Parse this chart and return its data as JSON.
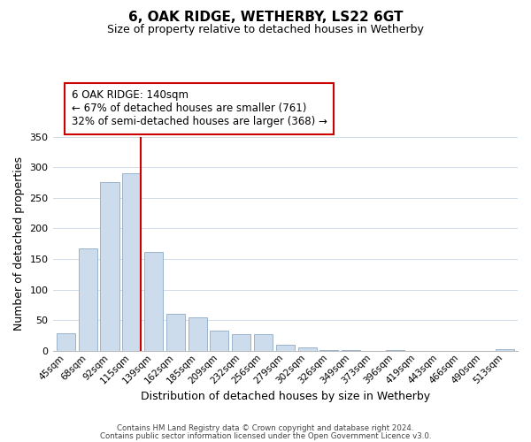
{
  "title": "6, OAK RIDGE, WETHERBY, LS22 6GT",
  "subtitle": "Size of property relative to detached houses in Wetherby",
  "xlabel": "Distribution of detached houses by size in Wetherby",
  "ylabel": "Number of detached properties",
  "bar_labels": [
    "45sqm",
    "68sqm",
    "92sqm",
    "115sqm",
    "139sqm",
    "162sqm",
    "185sqm",
    "209sqm",
    "232sqm",
    "256sqm",
    "279sqm",
    "302sqm",
    "326sqm",
    "349sqm",
    "373sqm",
    "396sqm",
    "419sqm",
    "443sqm",
    "466sqm",
    "490sqm",
    "513sqm"
  ],
  "bar_values": [
    29,
    168,
    276,
    290,
    161,
    60,
    54,
    33,
    27,
    27,
    10,
    5,
    1,
    1,
    0,
    1,
    0,
    0,
    0,
    0,
    3
  ],
  "bar_color": "#ccdcec",
  "bar_edge_color": "#9ab4cc",
  "highlight_line_color": "#cc0000",
  "highlight_line_index": 3,
  "ylim": [
    0,
    350
  ],
  "yticks": [
    0,
    50,
    100,
    150,
    200,
    250,
    300,
    350
  ],
  "annotation_text": "6 OAK RIDGE: 140sqm\n← 67% of detached houses are smaller (761)\n32% of semi-detached houses are larger (368) →",
  "footer_line1": "Contains HM Land Registry data © Crown copyright and database right 2024.",
  "footer_line2": "Contains public sector information licensed under the Open Government Licence v3.0.",
  "background_color": "#ffffff",
  "grid_color": "#d0dce8"
}
